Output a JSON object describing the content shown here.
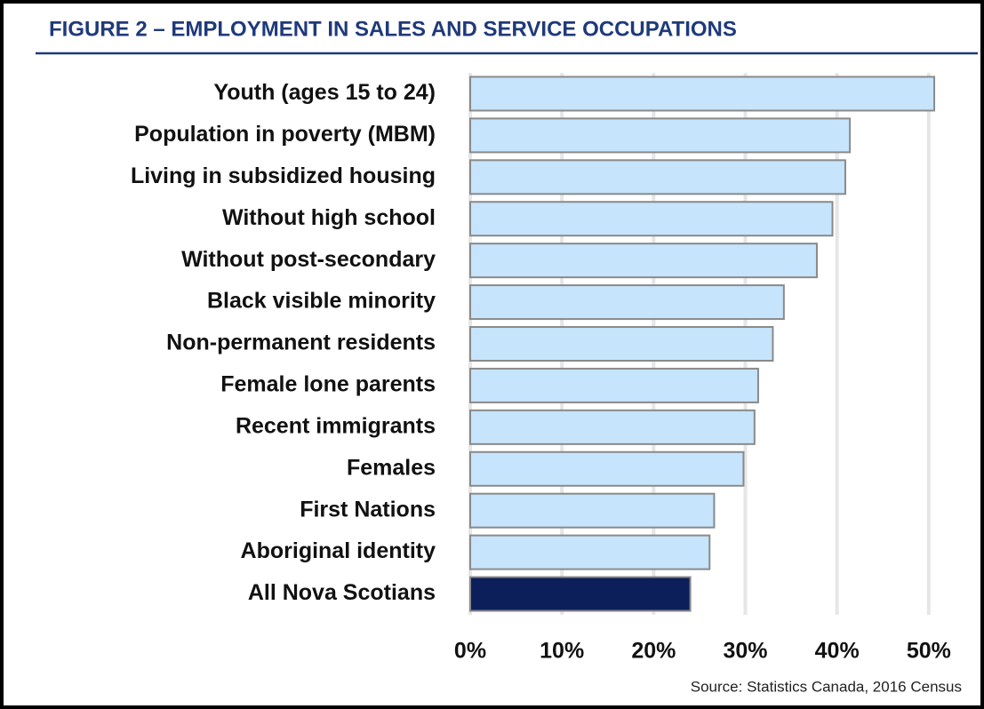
{
  "chart_data": {
    "type": "barh",
    "title": "FIGURE 2 – EMPLOYMENT IN SALES AND SERVICE OCCUPATIONS",
    "source": "Source: Statistics Canada, 2016 Census",
    "categories": [
      "Youth (ages 15 to 24)",
      "Population in poverty (MBM)",
      "Living in subsidized housing",
      "Without high school",
      "Without post-secondary",
      "Black visible minority",
      "Non-permanent residents",
      "Female lone parents",
      "Recent immigrants",
      "Females",
      "First Nations",
      "Aboriginal identity",
      "All Nova Scotians"
    ],
    "values": [
      50.6,
      41.4,
      40.9,
      39.5,
      37.8,
      34.2,
      33,
      31.4,
      31,
      29.8,
      26.6,
      26.1,
      24
    ],
    "colors": [
      "#c6e4fb",
      "#c6e4fb",
      "#c6e4fb",
      "#c6e4fb",
      "#c6e4fb",
      "#c6e4fb",
      "#c6e4fb",
      "#c6e4fb",
      "#c6e4fb",
      "#c6e4fb",
      "#c6e4fb",
      "#c6e4fb",
      "#0c1f5a"
    ],
    "xlim": [
      0,
      50.5
    ],
    "xticks": [
      {
        "value": 0,
        "label": "0%"
      },
      {
        "value": 10,
        "label": "10%"
      },
      {
        "value": 20,
        "label": "20%"
      },
      {
        "value": 30,
        "label": "30%"
      },
      {
        "value": 40,
        "label": "40%"
      },
      {
        "value": 50,
        "label": "50%"
      }
    ],
    "grid": true
  }
}
